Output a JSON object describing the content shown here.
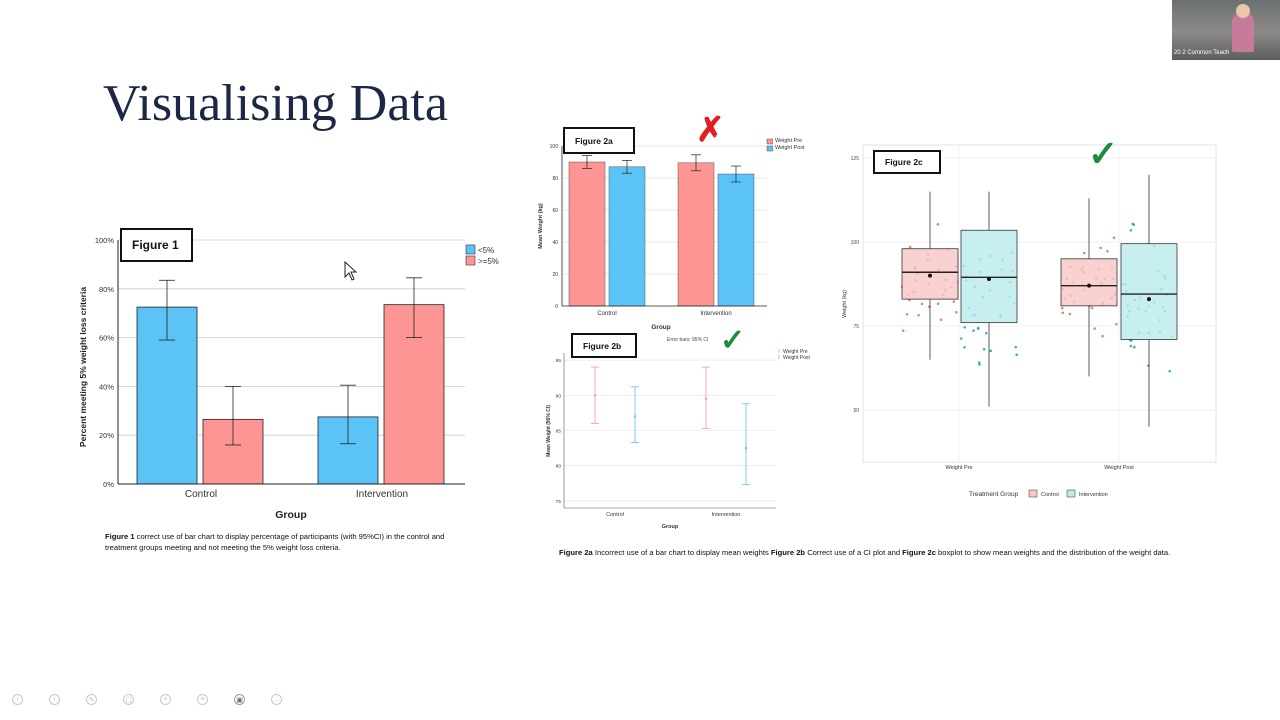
{
  "slide": {
    "title": "Visualising Data"
  },
  "fig1": {
    "label": "Figure 1",
    "ylabel": "Percent meeting 5% weight loss criteria",
    "xlabel": "Group",
    "yticks": [
      "0%",
      "20%",
      "40%",
      "60%",
      "80%",
      "100%"
    ],
    "legend": [
      "<5%",
      ">=5%"
    ],
    "caption_bold": "Figure 1",
    "caption_text": " correct use of bar chart to display percentage of participants (with 95%CI) in the control and treatment groups meeting and not meeting the 5% weight loss criteria.",
    "colors": {
      "lt5": "#5bc3f6",
      "ge5": "#fc9594"
    },
    "chart_data": {
      "type": "bar",
      "categories": [
        "Control",
        "Intervention"
      ],
      "series": [
        {
          "name": "<5%",
          "values": [
            72.5,
            27.5
          ],
          "ci_low": [
            59,
            16.5
          ],
          "ci_high": [
            83.5,
            40.5
          ]
        },
        {
          "name": ">=5%",
          "values": [
            26.5,
            73.5
          ],
          "ci_low": [
            16,
            60
          ],
          "ci_high": [
            40,
            84.5
          ]
        }
      ],
      "title": "",
      "xlabel": "Group",
      "ylabel": "Percent meeting 5% weight loss criteria",
      "ylim": [
        0,
        100
      ],
      "grid": true,
      "legend": "top-right"
    }
  },
  "fig2a": {
    "label": "Figure 2a",
    "ylabel": "Mean Weight (kg)",
    "xlabel": "Group",
    "yticks": [
      "0",
      "20",
      "40",
      "60",
      "80",
      "100"
    ],
    "legend": [
      "Weight Pre",
      "Weight Post"
    ],
    "mark": "✗",
    "chart_data": {
      "type": "bar",
      "categories": [
        "Control",
        "Intervention"
      ],
      "series": [
        {
          "name": "Weight Pre",
          "values": [
            90,
            89.5
          ],
          "err": [
            4,
            5
          ]
        },
        {
          "name": "Weight Post",
          "values": [
            87,
            82.5
          ],
          "err": [
            4,
            5
          ]
        }
      ],
      "title": "",
      "xlabel": "Group",
      "ylabel": "Mean Weight (kg)",
      "ylim": [
        0,
        100
      ],
      "grid": true,
      "legend": "top-right"
    }
  },
  "fig2b": {
    "label": "Figure 2b",
    "ylabel": "Mean Weight (95% CI)",
    "xlabel": "Group",
    "note": "Error bars: 95% CI",
    "yticks": [
      "75",
      "80",
      "85",
      "90",
      "95"
    ],
    "legend": [
      "Weight Pre",
      "Weight Post"
    ],
    "mark": "✓",
    "chart_data": {
      "type": "scatter",
      "categories": [
        "Control",
        "Intervention"
      ],
      "series": [
        {
          "name": "Weight Pre",
          "values": [
            90,
            89.5
          ],
          "ci_low": [
            86,
            85.3
          ],
          "ci_high": [
            94,
            94
          ]
        },
        {
          "name": "Weight Post",
          "values": [
            87,
            82.5
          ],
          "ci_low": [
            83.3,
            77.3
          ],
          "ci_high": [
            91.2,
            88.8
          ]
        }
      ],
      "title": "",
      "xlabel": "Group",
      "ylabel": "Mean Weight (95% CI)",
      "ylim": [
        74,
        96
      ],
      "grid": true,
      "legend": "top-right"
    }
  },
  "fig2c": {
    "label": "Figure 2c",
    "ylabel": "Weight (kg)",
    "yticks": [
      "50",
      "75",
      "100",
      "125"
    ],
    "xticks": [
      "Weight Pre",
      "Weight Post"
    ],
    "legend_title": "Treatment Group",
    "legend": [
      "Control",
      "Intervention"
    ],
    "mark": "✓",
    "chart_data": {
      "type": "box",
      "categories": [
        "Weight Pre",
        "Weight Post"
      ],
      "series": [
        {
          "name": "Control",
          "q1": [
            83,
            81
          ],
          "median": [
            91,
            87
          ],
          "q3": [
            98,
            95
          ],
          "whisker_low": [
            65,
            60
          ],
          "whisker_high": [
            115,
            113
          ],
          "mean": [
            90,
            87
          ]
        },
        {
          "name": "Intervention",
          "q1": [
            76,
            71
          ],
          "median": [
            89.5,
            84.5
          ],
          "q3": [
            103.5,
            99.5
          ],
          "whisker_low": [
            51,
            45
          ],
          "whisker_high": [
            115,
            120
          ],
          "mean": [
            89,
            83
          ]
        }
      ],
      "title": "",
      "xlabel": "",
      "ylabel": "Weight (kg)",
      "ylim": [
        40,
        130
      ],
      "grid": true,
      "legend": "bottom"
    }
  },
  "caption2": {
    "a_bold": "Figure 2a",
    "a_text": " Incorrect use of a bar chart to display mean weights ",
    "b_bold": "Figure 2b",
    "b_text": " Correct use of a CI plot and ",
    "c_bold": "Figure 2c",
    "c_text": " boxplot to show mean weights and the distribution of the weight data."
  },
  "toolbar": {
    "icons": [
      "arrow-left-icon",
      "arrow-right-icon",
      "pen-icon",
      "gallery-icon",
      "zoom-icon",
      "subtitles-icon",
      "camera-icon",
      "more-icon"
    ]
  },
  "webcam": {
    "label": "20 2 Common Teach"
  }
}
